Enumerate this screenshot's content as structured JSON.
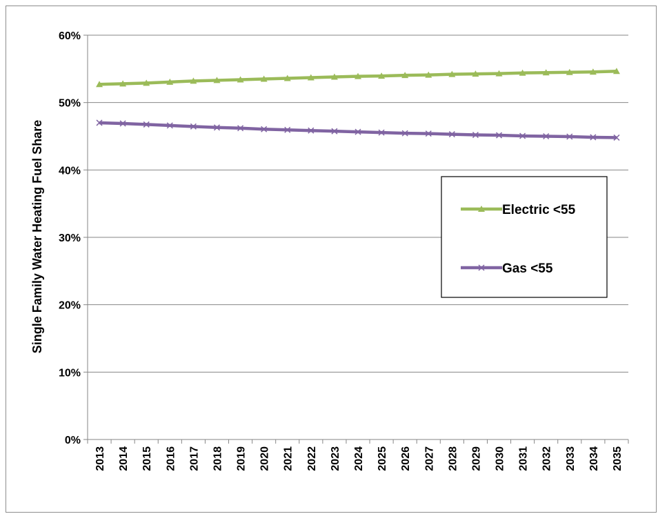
{
  "chart_data": {
    "type": "line",
    "title": "",
    "xlabel": "",
    "ylabel": "Single Family Water Heating Fuel Share",
    "x": [
      "2013",
      "2014",
      "2015",
      "2016",
      "2017",
      "2018",
      "2019",
      "2020",
      "2021",
      "2022",
      "2023",
      "2024",
      "2025",
      "2026",
      "2027",
      "2028",
      "2029",
      "2030",
      "2031",
      "2032",
      "2033",
      "2034",
      "2035"
    ],
    "ylim": [
      0,
      60
    ],
    "yticks": [
      0,
      10,
      20,
      30,
      40,
      50,
      60
    ],
    "ytick_labels": [
      "0%",
      "10%",
      "20%",
      "30%",
      "40%",
      "50%",
      "60%"
    ],
    "grid": "horizontal",
    "legend_position": "right",
    "series": [
      {
        "name": "Electric <55",
        "color": "#9bbb59",
        "marker": "triangle",
        "values": [
          52.7,
          52.8,
          52.9,
          53.05,
          53.2,
          53.3,
          53.4,
          53.5,
          53.6,
          53.7,
          53.8,
          53.9,
          53.95,
          54.05,
          54.1,
          54.2,
          54.25,
          54.3,
          54.4,
          54.45,
          54.5,
          54.55,
          54.65
        ]
      },
      {
        "name": "Gas <55",
        "color": "#8064a2",
        "marker": "x",
        "values": [
          47.0,
          46.9,
          46.75,
          46.6,
          46.45,
          46.3,
          46.2,
          46.05,
          45.95,
          45.85,
          45.75,
          45.65,
          45.55,
          45.45,
          45.4,
          45.3,
          45.2,
          45.15,
          45.05,
          45.0,
          44.95,
          44.85,
          44.8
        ]
      }
    ]
  }
}
